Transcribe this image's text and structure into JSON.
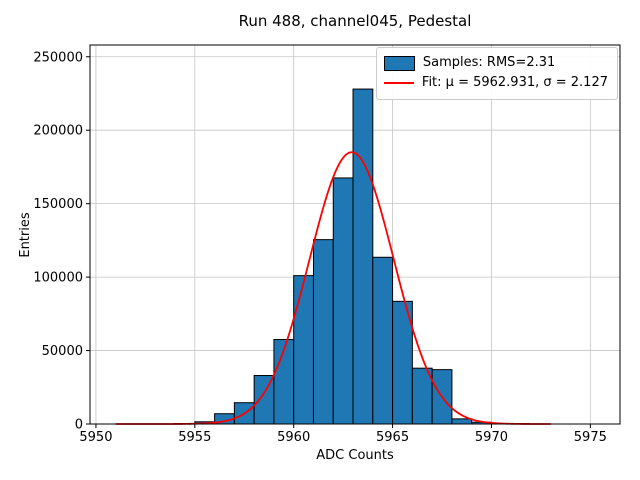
{
  "title": "Run 488, channel045, Pedestal",
  "xlabel": "ADC Counts",
  "ylabel": "Entries",
  "legend": {
    "samples_label": "Samples: RMS=2.31",
    "fit_label": "Fit: μ = 5962.931, σ = 2.127"
  },
  "colors": {
    "bar_fill": "#1f77b4",
    "bar_edge": "#000000",
    "fit_line": "#ff0000",
    "grid": "#c6c6c6",
    "frame": "#000000"
  },
  "chart_data": {
    "type": "bar",
    "subtype": "histogram_with_gaussian_fit",
    "title": "Run 488, channel045, Pedestal",
    "xlabel": "ADC Counts",
    "ylabel": "Entries",
    "grid": true,
    "legend_position": "upper right",
    "legend_entries": [
      "Samples: RMS=2.31",
      "Fit: μ = 5962.931, σ = 2.127"
    ],
    "xlim": [
      5949.7,
      5976.5
    ],
    "ylim": [
      0,
      258000
    ],
    "xticks": [
      5950,
      5955,
      5960,
      5965,
      5970,
      5975
    ],
    "yticks": [
      0,
      50000,
      100000,
      150000,
      200000,
      250000
    ],
    "bin_width": 1,
    "bin_left_edges": [
      5955,
      5956,
      5957,
      5958,
      5959,
      5960,
      5961,
      5962,
      5963,
      5964,
      5965,
      5966,
      5967,
      5968,
      5969
    ],
    "counts": [
      1500,
      7000,
      14500,
      33000,
      57500,
      101000,
      125500,
      167500,
      228000,
      113500,
      83500,
      38000,
      37000,
      3500,
      1200
    ],
    "fit": {
      "mu": 5962.931,
      "sigma": 2.127,
      "amplitude": 185000,
      "x_range": [
        5951,
        5973
      ]
    }
  }
}
